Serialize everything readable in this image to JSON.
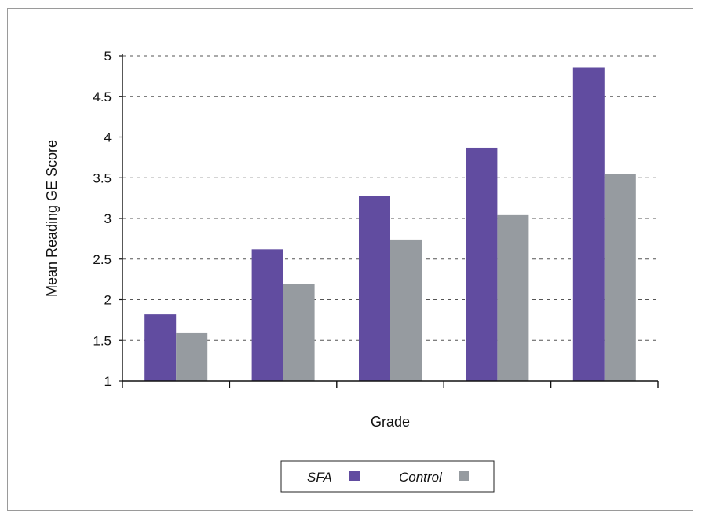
{
  "chart_data": {
    "type": "bar",
    "title": "",
    "xlabel": "Grade",
    "ylabel": "Mean Reading GE Score",
    "ylim": [
      1,
      5
    ],
    "yticks": [
      "1",
      "1.5",
      "2",
      "2.5",
      "3",
      "3.5",
      "4",
      "4.5",
      "5"
    ],
    "categories": [
      "",
      "",
      "",
      "",
      ""
    ],
    "series": [
      {
        "name": "SFA",
        "color": "#614ca0",
        "values": [
          1.82,
          2.62,
          3.28,
          3.87,
          4.86
        ]
      },
      {
        "name": "Control",
        "color": "#969ba0",
        "values": [
          1.59,
          2.19,
          2.74,
          3.04,
          3.55
        ]
      }
    ],
    "grid": true,
    "grid_style": "dashed",
    "legend_position": "bottom"
  }
}
